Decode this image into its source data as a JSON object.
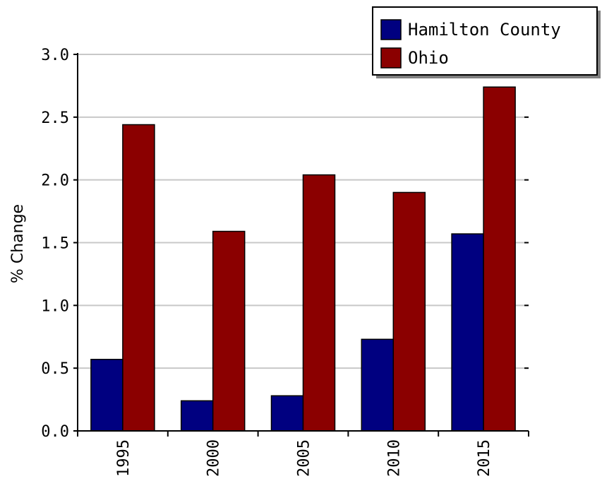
{
  "chart_data": {
    "type": "bar",
    "categories": [
      "1995",
      "2000",
      "2005",
      "2010",
      "2015"
    ],
    "series": [
      {
        "name": "Hamilton County",
        "color": "#000080",
        "values": [
          0.57,
          0.24,
          0.28,
          0.73,
          1.57
        ]
      },
      {
        "name": "Ohio",
        "color": "#8b0000",
        "values": [
          2.44,
          1.59,
          2.04,
          1.9,
          2.74
        ]
      }
    ],
    "title": "",
    "xlabel": "",
    "ylabel": "% Change",
    "ylim": [
      0,
      3.0
    ],
    "yticks": [
      "0.0",
      "0.5",
      "1.0",
      "1.5",
      "2.0",
      "2.5",
      "3.0"
    ],
    "grid": true,
    "legend_position": "top-right"
  }
}
